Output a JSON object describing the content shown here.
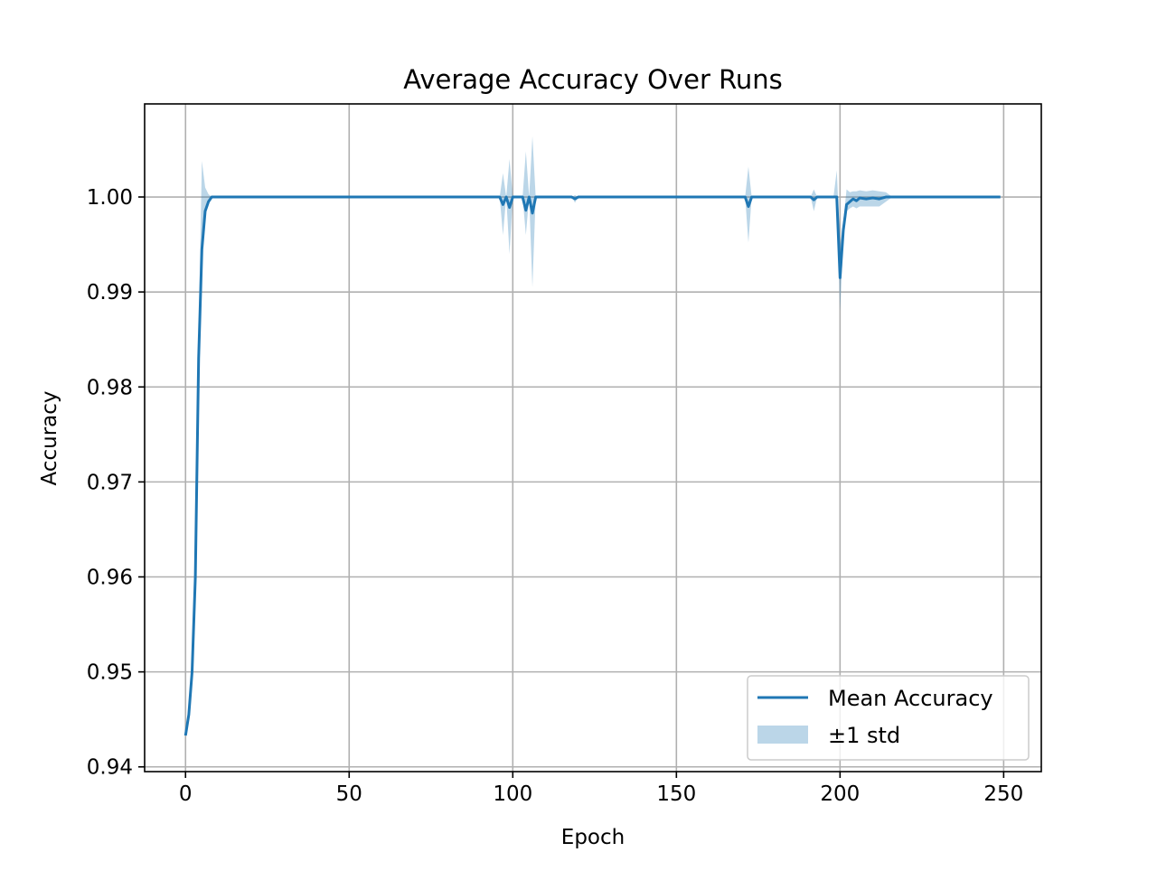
{
  "chart_data": {
    "type": "line",
    "title": "Average Accuracy Over Runs",
    "xlabel": "Epoch",
    "ylabel": "Accuracy",
    "xlim": [
      -12.5,
      261.5
    ],
    "ylim": [
      0.9395,
      1.0098
    ],
    "xticks": [
      0,
      50,
      100,
      150,
      200,
      250
    ],
    "xtick_labels": [
      "0",
      "50",
      "100",
      "150",
      "200",
      "250"
    ],
    "yticks": [
      0.94,
      0.95,
      0.96,
      0.97,
      0.98,
      0.99,
      1.0
    ],
    "ytick_labels": [
      "0.94",
      "0.95",
      "0.96",
      "0.97",
      "0.98",
      "0.99",
      "1.00"
    ],
    "grid": true,
    "legend_position": "lower-right",
    "colors": {
      "line": "#1f77b4",
      "band": "#1f77b4",
      "band_opacity": 0.3,
      "grid": "#b0b0b0"
    },
    "series": [
      {
        "name": "Mean Accuracy",
        "kind": "line",
        "x": [
          0,
          1,
          2,
          3,
          4,
          5,
          6,
          7,
          8,
          9,
          10,
          96,
          97,
          98,
          99,
          100,
          101,
          103,
          104,
          105,
          106,
          107,
          118,
          119,
          120,
          171,
          172,
          173,
          191,
          192,
          193,
          198,
          199,
          200,
          201,
          202,
          203,
          204,
          205,
          206,
          208,
          210,
          212,
          214,
          216,
          249
        ],
        "y": [
          0.9433,
          0.9455,
          0.95,
          0.96,
          0.983,
          0.9945,
          0.9985,
          0.9995,
          1.0,
          1.0,
          1.0,
          1.0,
          0.9992,
          1.0,
          0.9989,
          1.0,
          1.0,
          1.0,
          0.9986,
          1.0,
          0.9983,
          1.0,
          1.0,
          0.9998,
          1.0,
          1.0,
          0.999,
          1.0,
          1.0,
          0.9997,
          1.0,
          1.0,
          1.0,
          0.9915,
          0.9965,
          0.9992,
          0.9995,
          0.9998,
          0.9996,
          0.9999,
          0.9998,
          0.9999,
          0.9998,
          1.0,
          1.0,
          1.0
        ]
      },
      {
        "name": "±1 std",
        "kind": "band",
        "x": [
          0,
          1,
          2,
          3,
          4,
          5,
          6,
          7,
          8,
          9,
          10,
          96,
          97,
          98,
          99,
          100,
          101,
          103,
          104,
          105,
          106,
          107,
          118,
          119,
          120,
          171,
          172,
          173,
          191,
          192,
          193,
          198,
          199,
          200,
          201,
          202,
          203,
          204,
          205,
          206,
          208,
          210,
          212,
          214,
          216,
          249
        ],
        "lower": [
          0.9433,
          0.9455,
          0.95,
          0.96,
          0.98,
          0.9935,
          0.998,
          0.9995,
          1.0,
          1.0,
          1.0,
          1.0,
          0.996,
          1.0,
          0.994,
          1.0,
          1.0,
          1.0,
          0.996,
          1.0,
          0.9905,
          1.0,
          1.0,
          0.9994,
          1.0,
          1.0,
          0.9952,
          1.0,
          1.0,
          0.9985,
          1.0,
          1.0,
          0.9998,
          0.988,
          0.9955,
          0.9985,
          0.9988,
          0.999,
          0.9988,
          0.999,
          0.999,
          0.999,
          0.999,
          0.9995,
          1.0,
          1.0
        ],
        "upper": [
          0.9433,
          0.9455,
          0.95,
          0.96,
          0.986,
          1.0038,
          1.001,
          1.0003,
          1.0,
          1.0,
          1.0,
          1.0,
          1.0025,
          1.0,
          1.004,
          1.0,
          1.0,
          1.0,
          1.0048,
          1.0,
          1.0064,
          1.0,
          1.0,
          1.0002,
          1.0,
          1.0,
          1.0032,
          1.0,
          1.0,
          1.0008,
          1.0,
          1.0,
          1.0028,
          0.995,
          0.9975,
          1.0008,
          1.0005,
          1.0006,
          1.0006,
          1.0007,
          1.0006,
          1.0007,
          1.0006,
          1.0005,
          1.0,
          1.0
        ]
      }
    ],
    "legend": {
      "line_label": "Mean Accuracy",
      "band_label": "±1 std"
    }
  }
}
